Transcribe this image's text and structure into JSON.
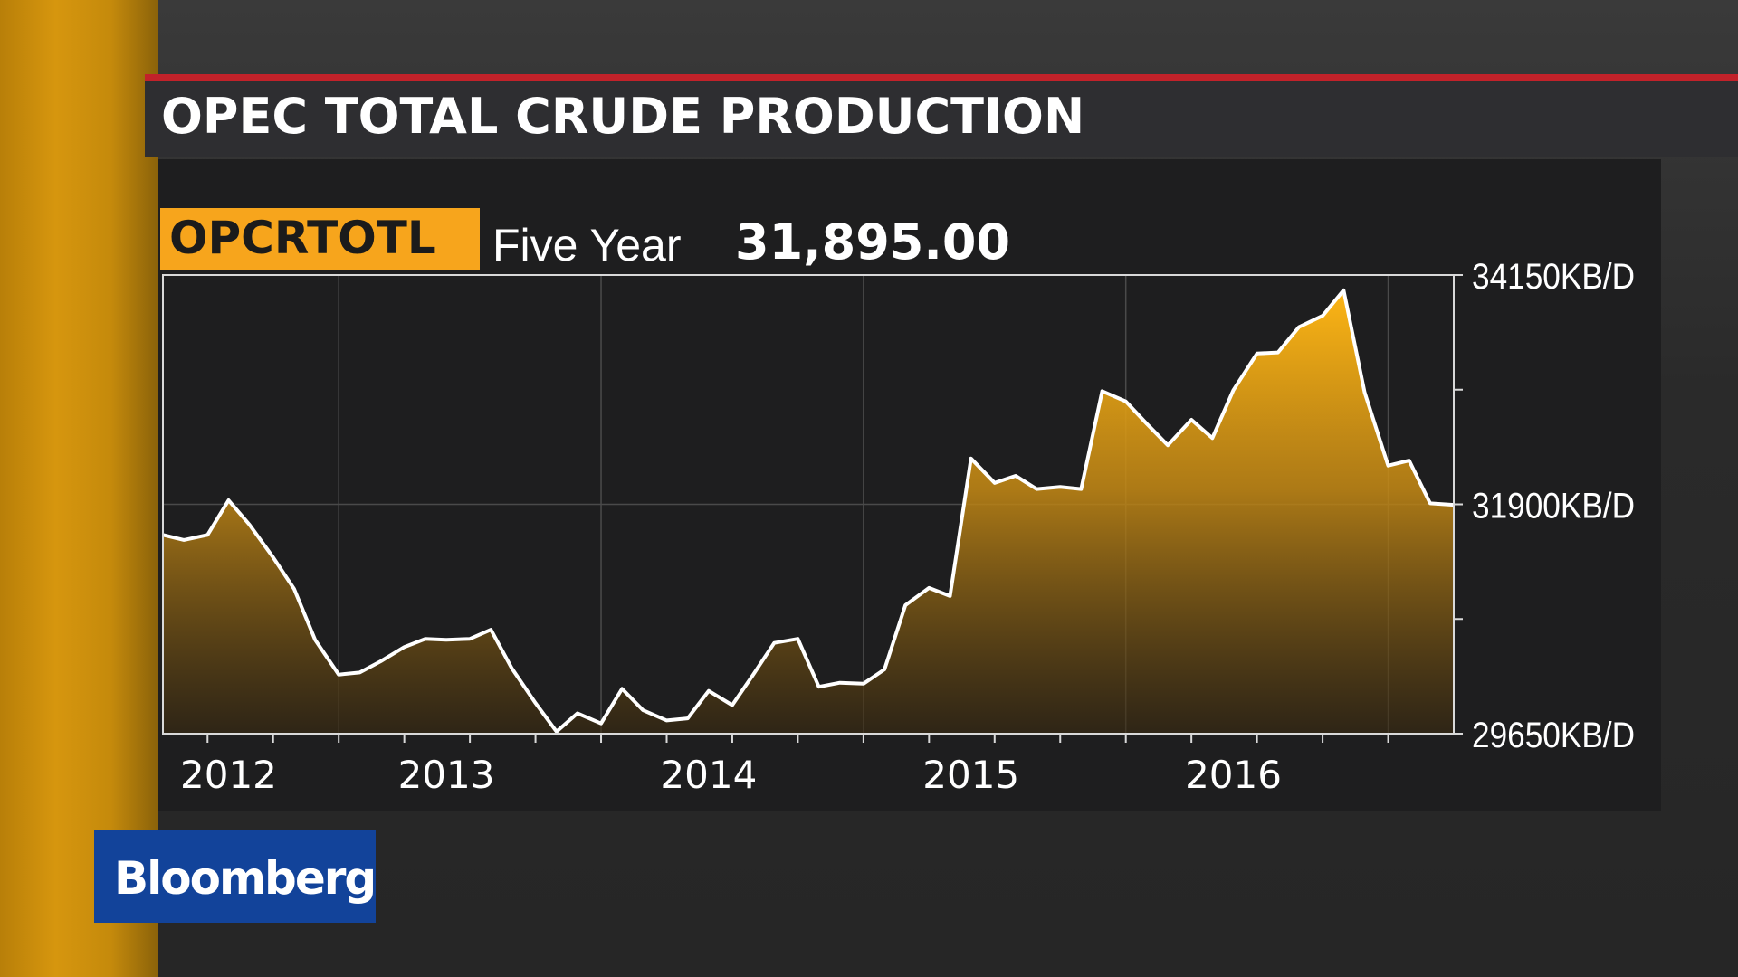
{
  "title": "OPEC TOTAL CRUDE PRODUCTION",
  "ticker": "OPCRTOTL",
  "period": "Five Year",
  "last_value": "31,895.00",
  "brand": "Bloomberg",
  "colors": {
    "accent": "#f7a51c",
    "red_rule": "#c2222a",
    "brand_blue": "#12439a",
    "line": "#ffffff"
  },
  "chart_data": {
    "type": "area",
    "title": "OPEC TOTAL CRUDE PRODUCTION",
    "ylim": [
      29650,
      34150
    ],
    "yticks": [
      29650,
      31900,
      34150
    ],
    "ytick_labels": [
      "29650KB/D",
      "31900KB/D",
      "34150KB/D"
    ],
    "xlim": [
      2011.75,
      2016.67
    ],
    "xtick_labels": [
      {
        "label": "2012",
        "x": 2012.0
      },
      {
        "label": "2013",
        "x": 2012.83
      },
      {
        "label": "2014",
        "x": 2013.83
      },
      {
        "label": "2015",
        "x": 2014.83
      },
      {
        "label": "2016",
        "x": 2015.83
      }
    ],
    "grid": true,
    "series": [
      {
        "x": [
          2011.75,
          2011.83,
          2011.92,
          2012.0,
          2012.08,
          2012.17,
          2012.25,
          2012.33,
          2012.42,
          2012.5,
          2012.58,
          2012.67,
          2012.75,
          2012.83,
          2012.92,
          2013.0,
          2013.08,
          2013.17,
          2013.25,
          2013.33,
          2013.42,
          2013.5,
          2013.58,
          2013.67,
          2013.75,
          2013.83,
          2013.92,
          2014.0,
          2014.08,
          2014.17,
          2014.25,
          2014.33,
          2014.42,
          2014.5,
          2014.58,
          2014.67,
          2014.75,
          2014.83,
          2014.92,
          2015.0,
          2015.08,
          2015.17,
          2015.25,
          2015.33,
          2015.42,
          2015.5,
          2015.58,
          2015.67,
          2015.75,
          2015.83,
          2015.92,
          2016.0,
          2016.08,
          2016.17,
          2016.25,
          2016.33,
          2016.42,
          2016.5,
          2016.58,
          2016.67
        ],
        "values": [
          31600,
          31550,
          31600,
          31940,
          31700,
          31380,
          31070,
          30570,
          30230,
          30250,
          30360,
          30500,
          30580,
          30570,
          30580,
          30670,
          30290,
          29950,
          29670,
          29850,
          29750,
          30090,
          29880,
          29780,
          29800,
          30070,
          29930,
          30230,
          30540,
          30580,
          30110,
          30150,
          30140,
          30280,
          30910,
          31080,
          31000,
          32350,
          32110,
          32180,
          32050,
          32070,
          32050,
          33010,
          32910,
          32690,
          32480,
          32730,
          32550,
          33020,
          33380,
          33390,
          33640,
          33750,
          34000,
          33000,
          32280,
          32330,
          31910,
          31895
        ]
      }
    ]
  }
}
